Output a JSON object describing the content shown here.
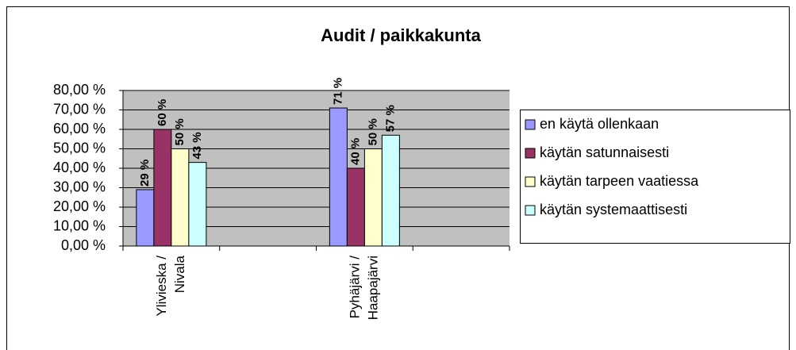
{
  "chart_data": {
    "type": "bar",
    "title": "Audit / paikkakunta",
    "categories": [
      "Ylivieska / Nivala",
      null,
      "Pyhäjärvi / Haapajärvi",
      null
    ],
    "series": [
      {
        "name": "en käytä ollenkaan",
        "color": "#9999ff",
        "values": [
          29,
          null,
          71,
          null
        ],
        "value_labels": [
          "29 %",
          null,
          "71 %",
          null
        ]
      },
      {
        "name": "käytän satunnaisesti",
        "color": "#993366",
        "values": [
          60,
          null,
          40,
          null
        ],
        "value_labels": [
          "60 %",
          null,
          "40 %",
          null
        ]
      },
      {
        "name": "käytän tarpeen vaatiessa",
        "color": "#ffffcc",
        "values": [
          50,
          null,
          50,
          null
        ],
        "value_labels": [
          "50 %",
          null,
          "50 %",
          null
        ]
      },
      {
        "name": "käytän systemaattisesti",
        "color": "#ccffff",
        "values": [
          43,
          null,
          57,
          null
        ],
        "value_labels": [
          "43 %",
          null,
          "57 %",
          null
        ]
      }
    ],
    "ylim": [
      0,
      80
    ],
    "yticks": [
      {
        "value": 0,
        "label": "0,00 %"
      },
      {
        "value": 10,
        "label": "10,00 %"
      },
      {
        "value": 20,
        "label": "20,00 %"
      },
      {
        "value": 30,
        "label": "30,00 %"
      },
      {
        "value": 40,
        "label": "40,00 %"
      },
      {
        "value": 50,
        "label": "50,00 %"
      },
      {
        "value": 60,
        "label": "60,00 %"
      },
      {
        "value": 70,
        "label": "70,00 %"
      },
      {
        "value": 80,
        "label": "80,00 %"
      }
    ],
    "grid": true,
    "legend": "right"
  }
}
